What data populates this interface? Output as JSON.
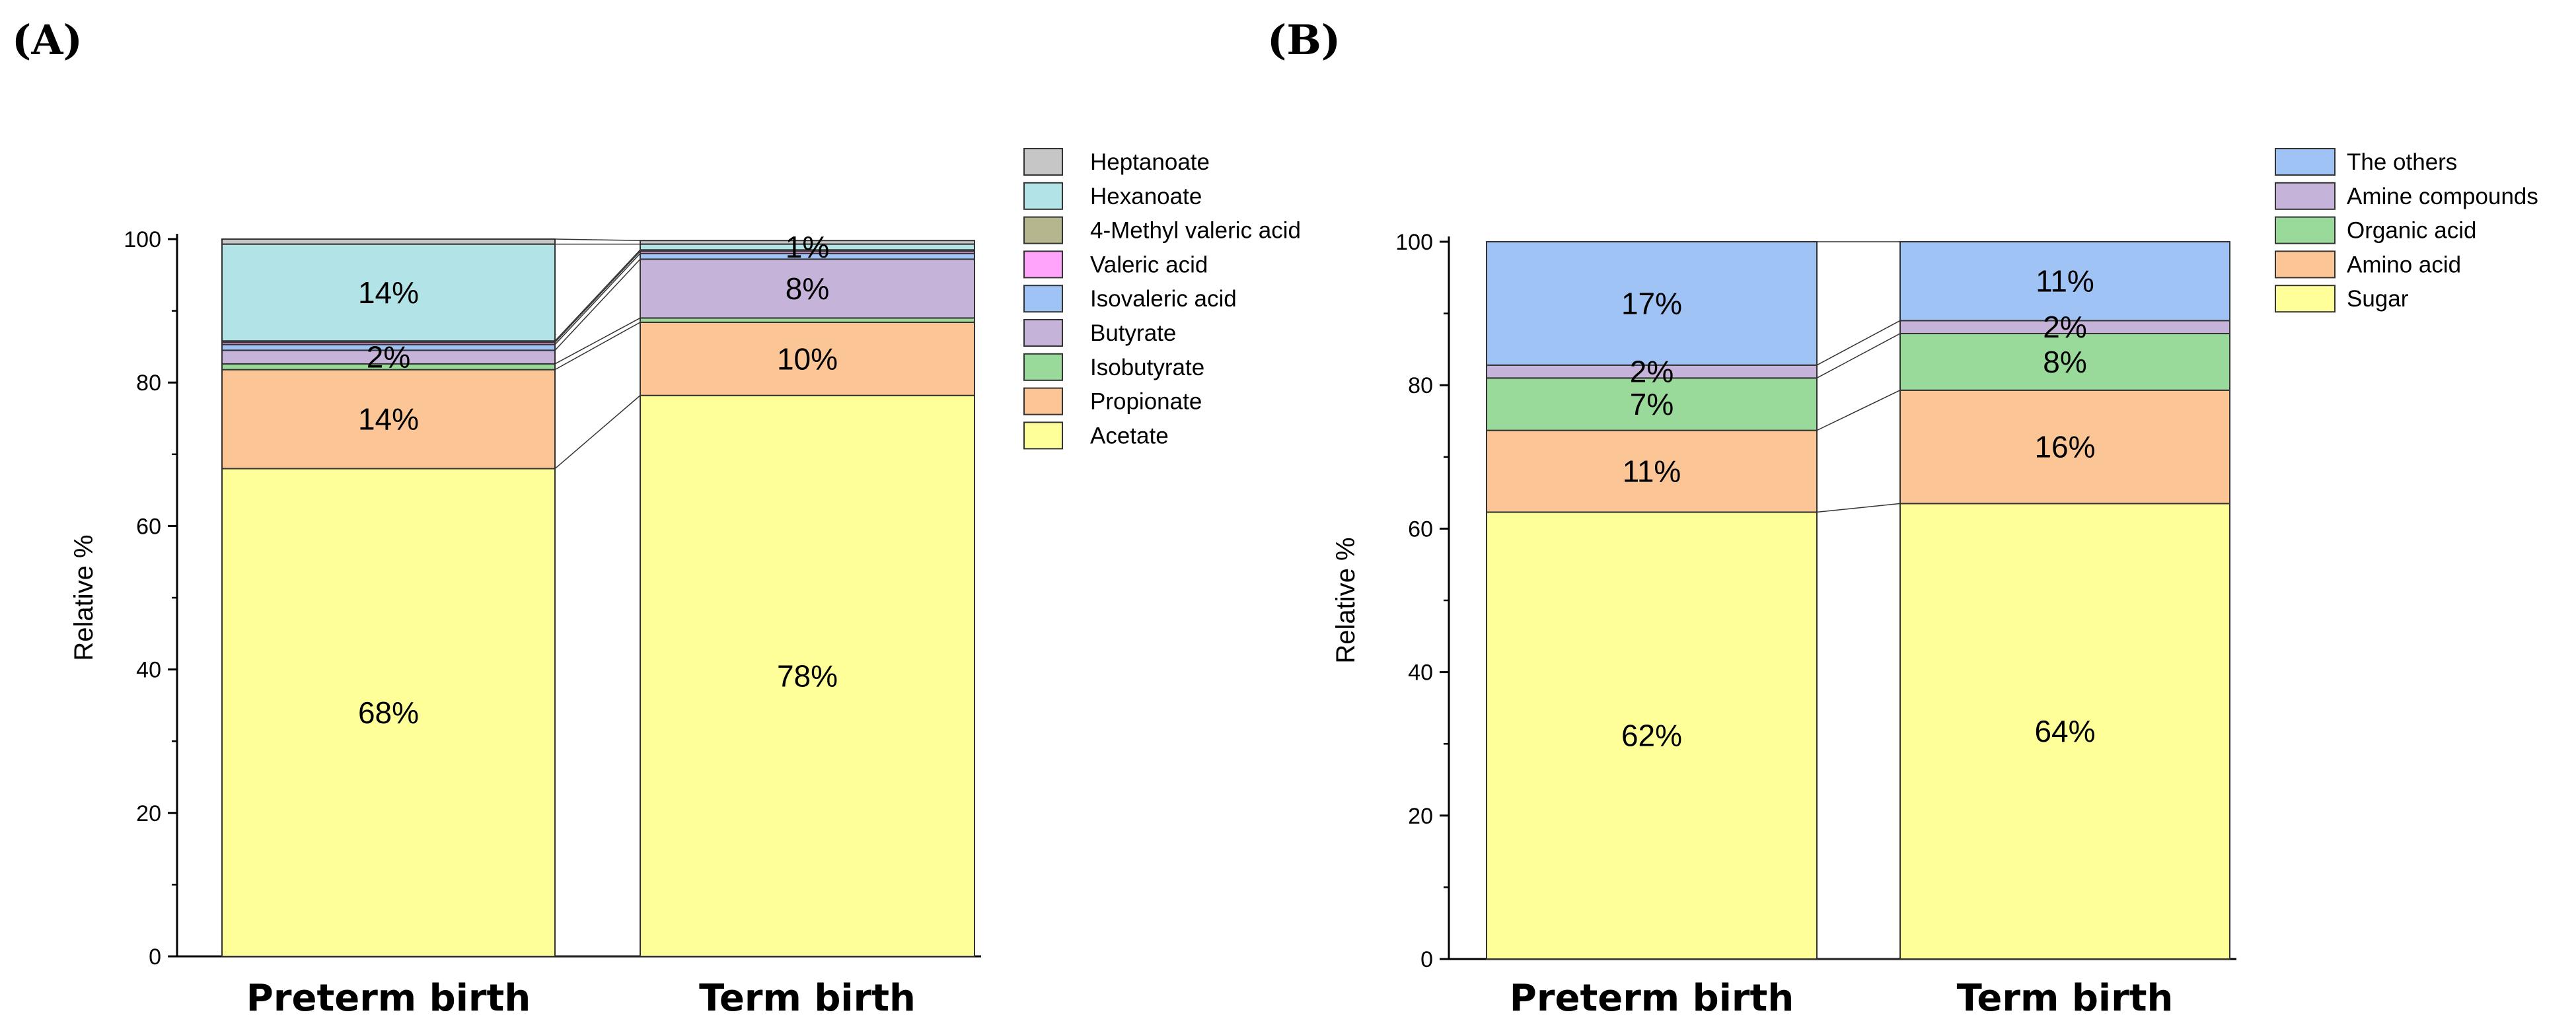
{
  "chart_data": [
    {
      "panel": "(A)",
      "type": "bar",
      "stacked": true,
      "categories": [
        "Preterm birth",
        "Term birth"
      ],
      "ylabel": "Relative %",
      "ylim": [
        0,
        100
      ],
      "yticks": [
        0,
        20,
        40,
        60,
        80,
        100
      ],
      "legend_position": "top-right",
      "series": [
        {
          "name": "Acetate",
          "color": "#ffff99",
          "values": [
            68,
            78.2
          ],
          "labels": [
            "68%",
            "78%"
          ]
        },
        {
          "name": "Propionate",
          "color": "#fbc595",
          "values": [
            13.8,
            10.2
          ],
          "labels": [
            "14%",
            "10%"
          ]
        },
        {
          "name": "Isobutyrate",
          "color": "#99d999",
          "values": [
            0.8,
            0.6
          ],
          "labels": [
            "",
            ""
          ]
        },
        {
          "name": "Butyrate",
          "color": "#c6b3d9",
          "values": [
            1.9,
            8.2
          ],
          "labels": [
            "2%",
            "8%"
          ]
        },
        {
          "name": "Isovaleric acid",
          "color": "#9fc3f5",
          "values": [
            0.8,
            0.8
          ],
          "labels": [
            "",
            ""
          ]
        },
        {
          "name": "Valeric acid",
          "color": "#ffa3fb",
          "values": [
            0.3,
            0.3
          ],
          "labels": [
            "",
            ""
          ]
        },
        {
          "name": "4-Methyl valeric acid",
          "color": "#b5b58e",
          "values": [
            0.2,
            0.2
          ],
          "labels": [
            "",
            ""
          ]
        },
        {
          "name": "Hexanoate",
          "color": "#b2e3e6",
          "values": [
            13.5,
            0.8
          ],
          "labels": [
            "14%",
            "1%"
          ]
        },
        {
          "name": "Heptanoate",
          "color": "#c6c6c6",
          "values": [
            0.7,
            0.5
          ],
          "labels": [
            "",
            ""
          ]
        }
      ]
    },
    {
      "panel": "(B)",
      "type": "bar",
      "stacked": true,
      "categories": [
        "Preterm birth",
        "Term birth"
      ],
      "ylabel": "Relative %",
      "ylim": [
        0,
        100
      ],
      "yticks": [
        0,
        20,
        40,
        60,
        80,
        100
      ],
      "legend_position": "top-right",
      "series": [
        {
          "name": "Sugar",
          "color": "#ffff99",
          "values": [
            62.3,
            63.5
          ],
          "labels": [
            "62%",
            "64%"
          ]
        },
        {
          "name": "Amino acid",
          "color": "#fbc595",
          "values": [
            11.4,
            15.8
          ],
          "labels": [
            "11%",
            "16%"
          ]
        },
        {
          "name": "Organic acid",
          "color": "#99d999",
          "values": [
            7.3,
            7.9
          ],
          "labels": [
            "7%",
            "8%"
          ]
        },
        {
          "name": "Amine compounds",
          "color": "#c6b3d9",
          "values": [
            1.8,
            1.8
          ],
          "labels": [
            "2%",
            "2%"
          ]
        },
        {
          "name": "The others",
          "color": "#9fc3f5",
          "values": [
            17.2,
            11.0
          ],
          "labels": [
            "17%",
            "11%"
          ]
        }
      ]
    }
  ]
}
